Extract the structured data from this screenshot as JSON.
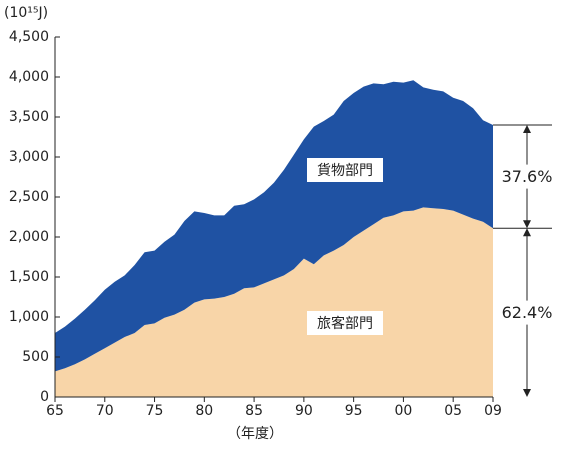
{
  "chart_data": {
    "type": "stacked_area",
    "y_label": "(10¹⁵J)",
    "x_label": "（年度）",
    "x": [
      1965,
      1966,
      1967,
      1968,
      1969,
      1970,
      1971,
      1972,
      1973,
      1974,
      1975,
      1976,
      1977,
      1978,
      1979,
      1980,
      1981,
      1982,
      1983,
      1984,
      1985,
      1986,
      1987,
      1988,
      1989,
      1990,
      1991,
      1992,
      1993,
      1994,
      1995,
      1996,
      1997,
      1998,
      1999,
      2000,
      2001,
      2002,
      2003,
      2004,
      2005,
      2006,
      2007,
      2008,
      2009
    ],
    "series": [
      {
        "name": "旅客部門",
        "color": "#f8d5a8",
        "values": [
          320,
          360,
          410,
          470,
          540,
          610,
          680,
          750,
          800,
          900,
          920,
          990,
          1030,
          1090,
          1180,
          1220,
          1230,
          1250,
          1290,
          1360,
          1370,
          1420,
          1470,
          1520,
          1600,
          1730,
          1660,
          1770,
          1830,
          1900,
          2000,
          2080,
          2160,
          2240,
          2270,
          2320,
          2330,
          2370,
          2360,
          2350,
          2330,
          2280,
          2230,
          2190,
          2110
        ]
      },
      {
        "name": "貨物部門",
        "color": "#1f52a3",
        "values": [
          480,
          520,
          570,
          620,
          670,
          730,
          760,
          770,
          850,
          910,
          910,
          950,
          1000,
          1110,
          1140,
          1080,
          1040,
          1020,
          1100,
          1050,
          1100,
          1140,
          1210,
          1320,
          1430,
          1490,
          1720,
          1680,
          1700,
          1800,
          1800,
          1800,
          1760,
          1670,
          1670,
          1610,
          1630,
          1500,
          1480,
          1470,
          1410,
          1420,
          1380,
          1270,
          1290
        ]
      }
    ],
    "annotations": [
      "62.4%",
      "37.6%"
    ],
    "xlim": [
      1965,
      2009
    ],
    "xticks": [
      {
        "value": 1965,
        "label": "65"
      },
      {
        "value": 1970,
        "label": "70"
      },
      {
        "value": 1975,
        "label": "75"
      },
      {
        "value": 1980,
        "label": "80"
      },
      {
        "value": 1985,
        "label": "85"
      },
      {
        "value": 1990,
        "label": "90"
      },
      {
        "value": 1995,
        "label": "95"
      },
      {
        "value": 2000,
        "label": "00"
      },
      {
        "value": 2005,
        "label": "05"
      },
      {
        "value": 2009,
        "label": "09"
      }
    ],
    "ylim": [
      0,
      4500
    ],
    "yticks": [
      0,
      500,
      {
        "value": 1000,
        "label": "1,000"
      },
      {
        "value": 1500,
        "label": "1,500"
      },
      {
        "value": 2000,
        "label": "2,000"
      },
      {
        "value": 2500,
        "label": "2,500"
      },
      {
        "value": 3000,
        "label": "3,000"
      },
      {
        "value": 3500,
        "label": "3,500"
      },
      {
        "value": 4000,
        "label": "4,000"
      },
      {
        "value": 4500,
        "label": "4,500"
      }
    ]
  }
}
